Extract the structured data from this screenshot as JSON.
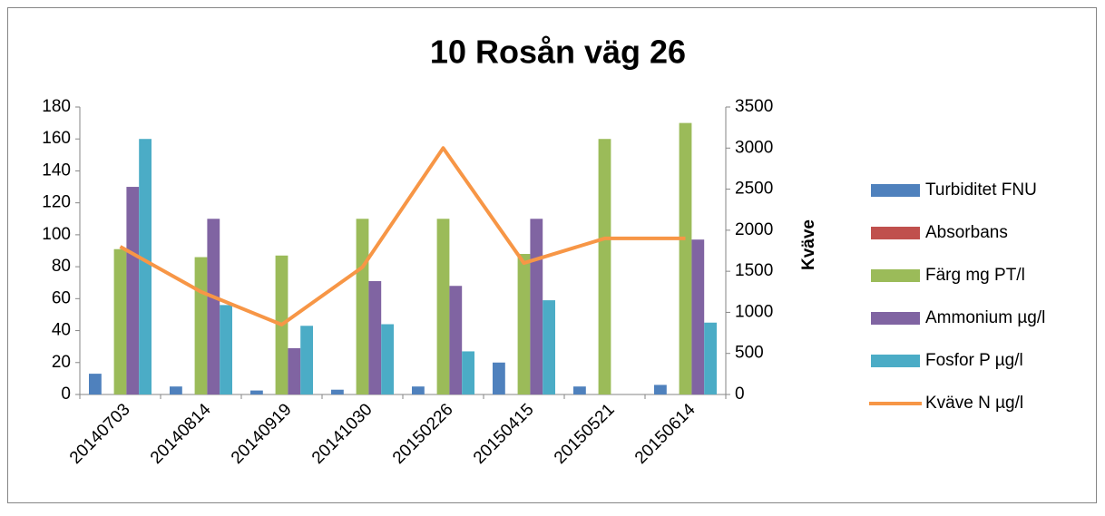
{
  "chart_data": {
    "type": "bar",
    "title": "10 Rosån väg 26",
    "categories": [
      "20140703",
      "20140814",
      "20140919",
      "20141030",
      "20150226",
      "20150415",
      "20150521",
      "20150614"
    ],
    "series": [
      {
        "name": "Turbiditet FNU",
        "color": "#4f81bd",
        "values": [
          13,
          5,
          2.5,
          3,
          5,
          20,
          5,
          6
        ]
      },
      {
        "name": "Absorbans",
        "color": "#c0504d",
        "values": [
          0,
          0,
          0,
          0,
          0,
          0,
          0,
          0
        ]
      },
      {
        "name": "Färg mg PT/l",
        "color": "#9bbb59",
        "values": [
          91,
          86,
          87,
          110,
          110,
          88,
          160,
          170
        ]
      },
      {
        "name": "Ammonium µg/l",
        "color": "#8064a2",
        "values": [
          130,
          110,
          29,
          71,
          68,
          110,
          null,
          97
        ]
      },
      {
        "name": "Fosfor P µg/l",
        "color": "#4bacc6",
        "values": [
          160,
          56,
          43,
          44,
          27,
          59,
          null,
          45
        ]
      },
      {
        "name": "Kväve N µg/l",
        "color": "#f79646",
        "type": "line",
        "axis": "y2",
        "values": [
          1800,
          1250,
          850,
          1550,
          3000,
          1600,
          1900,
          1900
        ]
      }
    ],
    "y2label": "Kväve",
    "ylim": [
      0,
      180
    ],
    "yticks": [
      0,
      20,
      40,
      60,
      80,
      100,
      120,
      140,
      160,
      180
    ],
    "y2lim": [
      0,
      3500
    ],
    "y2ticks": [
      0,
      500,
      1000,
      1500,
      2000,
      2500,
      3000,
      3500
    ],
    "legend": "right",
    "grid": false
  }
}
